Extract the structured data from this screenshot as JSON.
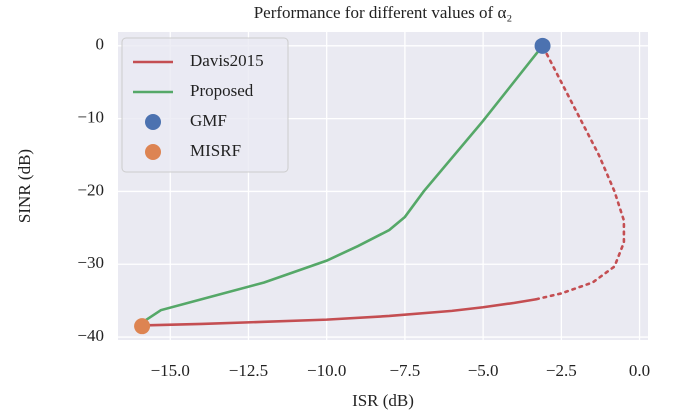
{
  "chart_data": {
    "type": "line",
    "title": "Performance for different values of α₂",
    "x_label": "ISR (dB)",
    "y_label": "SINR (dB)",
    "xlim": [
      -16.67,
      0.27
    ],
    "ylim": [
      -40.4,
      1.9
    ],
    "xticks": [
      {
        "value": -15,
        "label": "−15.0"
      },
      {
        "value": -12.5,
        "label": "−12.5"
      },
      {
        "value": -10,
        "label": "−10.0"
      },
      {
        "value": -7.5,
        "label": "−7.5"
      },
      {
        "value": -5,
        "label": "−5.0"
      },
      {
        "value": -2.5,
        "label": "−2.5"
      },
      {
        "value": 0,
        "label": "0.0"
      }
    ],
    "yticks": [
      0,
      {
        "value": -10,
        "label": "−10"
      },
      {
        "value": -20,
        "label": "−20"
      },
      {
        "value": -30,
        "label": "−30"
      },
      {
        "value": -40,
        "label": "−40"
      }
    ],
    "grid": true,
    "legend": "upper left",
    "series": [
      {
        "name": "Davis2015",
        "color": "#c44e52",
        "x": [
          -15.9,
          -14,
          -12,
          -10,
          -8,
          -6,
          -5,
          -4,
          -3.3
        ],
        "values": [
          -38.4,
          -38.2,
          -37.9,
          -37.6,
          -37.1,
          -36.4,
          -35.9,
          -35.3,
          -34.8
        ],
        "dotted_x": [
          -3.3,
          -2.5,
          -1.5,
          -0.8,
          -0.5,
          -0.5,
          -0.8,
          -1.3,
          -1.9,
          -2.5,
          -3.1
        ],
        "dotted_values": [
          -34.8,
          -34,
          -32.5,
          -30.3,
          -27,
          -24,
          -20,
          -15,
          -10,
          -5,
          0
        ]
      },
      {
        "name": "Proposed",
        "color": "#55a868",
        "x": [
          -15.9,
          -15.3,
          -14,
          -12,
          -10,
          -9,
          -8,
          -7.5,
          -6.9,
          -5,
          -3.1
        ],
        "values": [
          -38,
          -36.3,
          -34.8,
          -32.5,
          -29.5,
          -27.5,
          -25.3,
          -23.5,
          -20,
          -10.3,
          0
        ]
      },
      {
        "name": "GMF",
        "color": "#4c72b0",
        "marker": "point",
        "x": [
          -3.1
        ],
        "values": [
          0
        ]
      },
      {
        "name": "MISRF",
        "color": "#dd8452",
        "marker": "point",
        "x": [
          -15.9
        ],
        "values": [
          -38.5
        ]
      }
    ]
  }
}
